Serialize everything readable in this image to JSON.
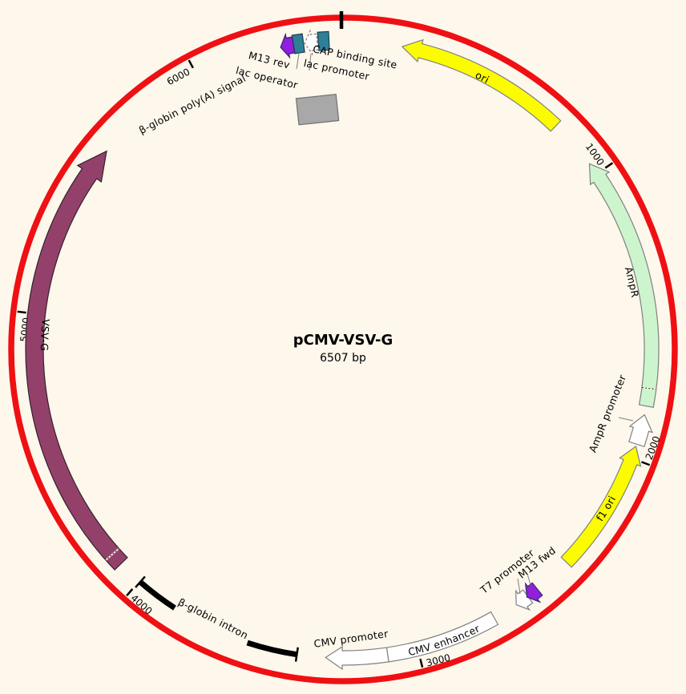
{
  "plasmid": {
    "name": "pCMV-VSV-G",
    "size_label": "6507 bp",
    "total_bp": 6507
  },
  "colors": {
    "background": "#FDF7EC",
    "backbone_ring": "#EF1013",
    "yellow_feature": "#FCFC00",
    "green_feature": "#CDF5CD",
    "white_feature": "#FFFFFF",
    "purple_feature": "#911FDB",
    "teal_feature": "#2E8096",
    "maroon_feature": "#93416B",
    "gray_feature": "#A8A8A8",
    "intron_black": "#000000",
    "outline_gray": "#808080",
    "text": "#000000"
  },
  "ticks": [
    {
      "bp": 1000,
      "label": "1000"
    },
    {
      "bp": 2000,
      "label": "2000"
    },
    {
      "bp": 3000,
      "label": "3000"
    },
    {
      "bp": 4000,
      "label": "4000"
    },
    {
      "bp": 5000,
      "label": "5000"
    },
    {
      "bp": 6000,
      "label": "6000"
    }
  ],
  "features": [
    {
      "name": "ori",
      "label": "ori",
      "type": "arrow",
      "start": 200,
      "end": 788,
      "direction": "ccw",
      "fill": "#FCFC00",
      "stroke": "#808080"
    },
    {
      "name": "AmpR",
      "label": "AmpR",
      "type": "arrow",
      "start": 958,
      "end": 1818,
      "direction": "ccw",
      "fill": "#CDF5CD",
      "stroke": "#808080",
      "divider_bp": [
        1758
      ]
    },
    {
      "name": "AmpR promoter",
      "label": "AmpR promoter",
      "type": "arrow",
      "start": 1848,
      "end": 1950,
      "direction": "ccw",
      "fill": "#FFFFFF",
      "stroke": "#808080",
      "small": true
    },
    {
      "name": "f1 ori",
      "label": "f1 ori",
      "type": "arrow",
      "start": 1958,
      "end": 2415,
      "direction": "ccw",
      "fill": "#FCFC00",
      "stroke": "#808080"
    },
    {
      "name": "T7 promoter",
      "label": "T7 promoter",
      "type": "arrow",
      "start": 2588,
      "end": 2636,
      "direction": "cw",
      "fill": "#FFFFFF",
      "stroke": "#808080",
      "small": true
    },
    {
      "name": "M13 fwd",
      "label": "M13 fwd",
      "type": "arrow",
      "start": 2548,
      "end": 2592,
      "direction": "cw",
      "fill": "#911FDB",
      "stroke": "#2C2C6E",
      "small": true
    },
    {
      "name": "CMV enhancer",
      "label": "CMV enhancer",
      "type": "band",
      "start": 2722,
      "end": 3103,
      "fill": "#FFFFFF",
      "stroke": "#808080"
    },
    {
      "name": "CMV promoter",
      "label": "CMV promoter",
      "type": "arrow",
      "start": 3103,
      "end": 3312,
      "direction": "cw",
      "fill": "#FFFFFF",
      "stroke": "#808080"
    },
    {
      "name": "beta-globin intron",
      "label": "β-globin intron",
      "type": "bracket",
      "start": 3409,
      "end": 3996,
      "gap_start": 3580,
      "gap_end": 3851,
      "fill": "#000000",
      "stroke": "#000000"
    },
    {
      "name": "VSV-G",
      "label": "VSV-G",
      "type": "arrow",
      "start": 4085,
      "end": 5603,
      "direction": "cw",
      "fill": "#93416B",
      "stroke": "#33222B",
      "divider_bp": [
        4128
      ],
      "thick": true
    },
    {
      "name": "beta-globin polyA signal",
      "label": "β-globin poly(A) signal",
      "type": "detached-box",
      "bp": 6397,
      "fill": "#A8A8A8",
      "stroke": "#707070"
    },
    {
      "name": "lac operator",
      "label": "lac operator",
      "type": "box",
      "start": 6340,
      "end": 6374,
      "fill": "#2E8096",
      "stroke": "#1C3F4C"
    },
    {
      "name": "lac promoter",
      "label": "lac promoter",
      "type": "arrow",
      "start": 6378,
      "end": 6420,
      "direction": "ccw",
      "fill": "#FFFFFF",
      "stroke": "#808080",
      "small": true,
      "dashed": true
    },
    {
      "name": "CAP binding site",
      "label": "CAP binding site",
      "type": "box",
      "start": 6424,
      "end": 6460,
      "fill": "#2E8096",
      "stroke": "#1C3F4C"
    },
    {
      "name": "M13 rev",
      "label": "M13 rev",
      "type": "arrow",
      "start": 6296,
      "end": 6340,
      "direction": "ccw",
      "fill": "#911FDB",
      "stroke": "#2C2C6E",
      "small": true
    }
  ]
}
